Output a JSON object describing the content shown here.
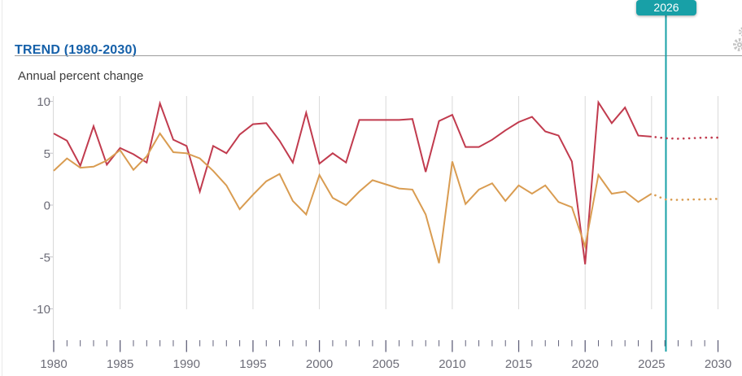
{
  "header": {
    "title": "TREND (1980-2030)",
    "subtitle": "Annual percent change",
    "year_marker": "2026"
  },
  "colors": {
    "title_blue": "#1560a9",
    "accent_teal": "#18a0a7",
    "red_series": "#c13b4e",
    "orange_series": "#d99c51",
    "gridline": "#d9d9d9",
    "axis_line": "#d9d9d9",
    "tick": "#61617a",
    "axis_label": "#6d6d78",
    "separator": "#9c9c9c",
    "gear": "#c4c4c4"
  },
  "chart_data": {
    "type": "line",
    "title": "TREND (1980-2030)",
    "ylabel": "Annual percent change",
    "x_range": [
      1980,
      2030
    ],
    "ylim": [
      -10,
      10
    ],
    "y_ticks": [
      10,
      5,
      0,
      -5,
      -10
    ],
    "x_ticks": [
      1980,
      1985,
      1990,
      1995,
      2000,
      2005,
      2010,
      2015,
      2020,
      2025,
      2030
    ],
    "grid": "vertical-only",
    "legend": "none",
    "marker_year": 2026,
    "projection_start_year": 2025,
    "projection_style": "dotted",
    "series": [
      {
        "name": "red-series",
        "color": "#c13b4e",
        "values": [
          6.9,
          6.2,
          3.8,
          7.6,
          3.9,
          5.5,
          4.9,
          4.1,
          9.8,
          6.3,
          5.7,
          1.3,
          5.7,
          5.0,
          6.8,
          7.8,
          7.9,
          6.2,
          4.1,
          8.9,
          4.0,
          5.0,
          4.1,
          8.2,
          8.2,
          8.2,
          8.2,
          8.3,
          3.2,
          8.1,
          8.7,
          5.6,
          5.6,
          6.3,
          7.2,
          8.0,
          8.5,
          7.1,
          6.7,
          4.2,
          -5.7,
          9.9,
          7.9,
          9.4,
          6.7,
          6.6,
          6.45,
          6.4,
          6.45,
          6.5,
          6.5
        ]
      },
      {
        "name": "orange-series",
        "color": "#d99c51",
        "values": [
          3.3,
          4.5,
          3.6,
          3.7,
          4.3,
          5.3,
          3.4,
          4.7,
          6.9,
          5.1,
          5.0,
          4.5,
          3.3,
          1.9,
          -0.4,
          1.0,
          2.3,
          3.0,
          0.4,
          -0.9,
          2.9,
          0.7,
          0.0,
          1.3,
          2.4,
          2.0,
          1.6,
          1.5,
          -0.9,
          -5.6,
          4.2,
          0.1,
          1.5,
          2.1,
          0.4,
          1.9,
          1.1,
          1.9,
          0.3,
          -0.2,
          -4.0,
          2.9,
          1.1,
          1.3,
          0.3,
          1.1,
          0.55,
          0.5,
          0.55,
          0.55,
          0.6
        ]
      }
    ]
  }
}
